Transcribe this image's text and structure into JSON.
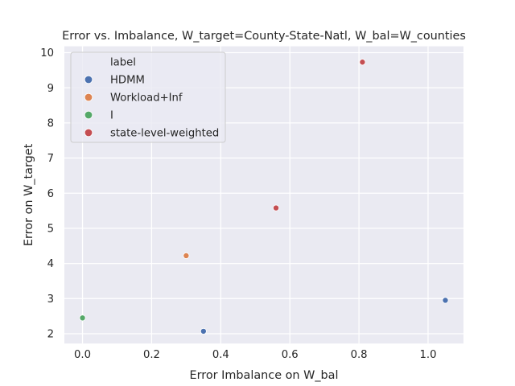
{
  "chart_data": {
    "type": "scatter",
    "title": "Error vs. Imbalance, W_target=County-State-Natl, W_bal=W_counties",
    "xlabel": "Error Imbalance on W_bal",
    "ylabel": "Error on W_target",
    "xlim": [
      -0.0525,
      1.1025
    ],
    "ylim": [
      1.72,
      10.18
    ],
    "xticks": [
      0.0,
      0.2,
      0.4,
      0.6,
      0.8,
      1.0
    ],
    "xtick_labels": [
      "0.0",
      "0.2",
      "0.4",
      "0.6",
      "0.8",
      "1.0"
    ],
    "yticks": [
      2,
      3,
      4,
      5,
      6,
      7,
      8,
      9,
      10
    ],
    "ytick_labels": [
      "2",
      "3",
      "4",
      "5",
      "6",
      "7",
      "8",
      "9",
      "10"
    ],
    "grid": true,
    "legend": {
      "title": "label",
      "placement": "top-left"
    },
    "series": [
      {
        "name": "HDMM",
        "color": "#4c72b0",
        "points": [
          {
            "x": 0.35,
            "y": 2.07
          },
          {
            "x": 1.05,
            "y": 2.95
          }
        ]
      },
      {
        "name": "Workload+Inf",
        "color": "#dd8452",
        "points": [
          {
            "x": 0.3,
            "y": 4.22
          }
        ]
      },
      {
        "name": "I",
        "color": "#55a868",
        "points": [
          {
            "x": 0.0,
            "y": 2.45
          }
        ]
      },
      {
        "name": "state-level-weighted",
        "color": "#c44e52",
        "points": [
          {
            "x": 0.56,
            "y": 5.58
          },
          {
            "x": 0.81,
            "y": 9.73
          }
        ]
      }
    ]
  }
}
